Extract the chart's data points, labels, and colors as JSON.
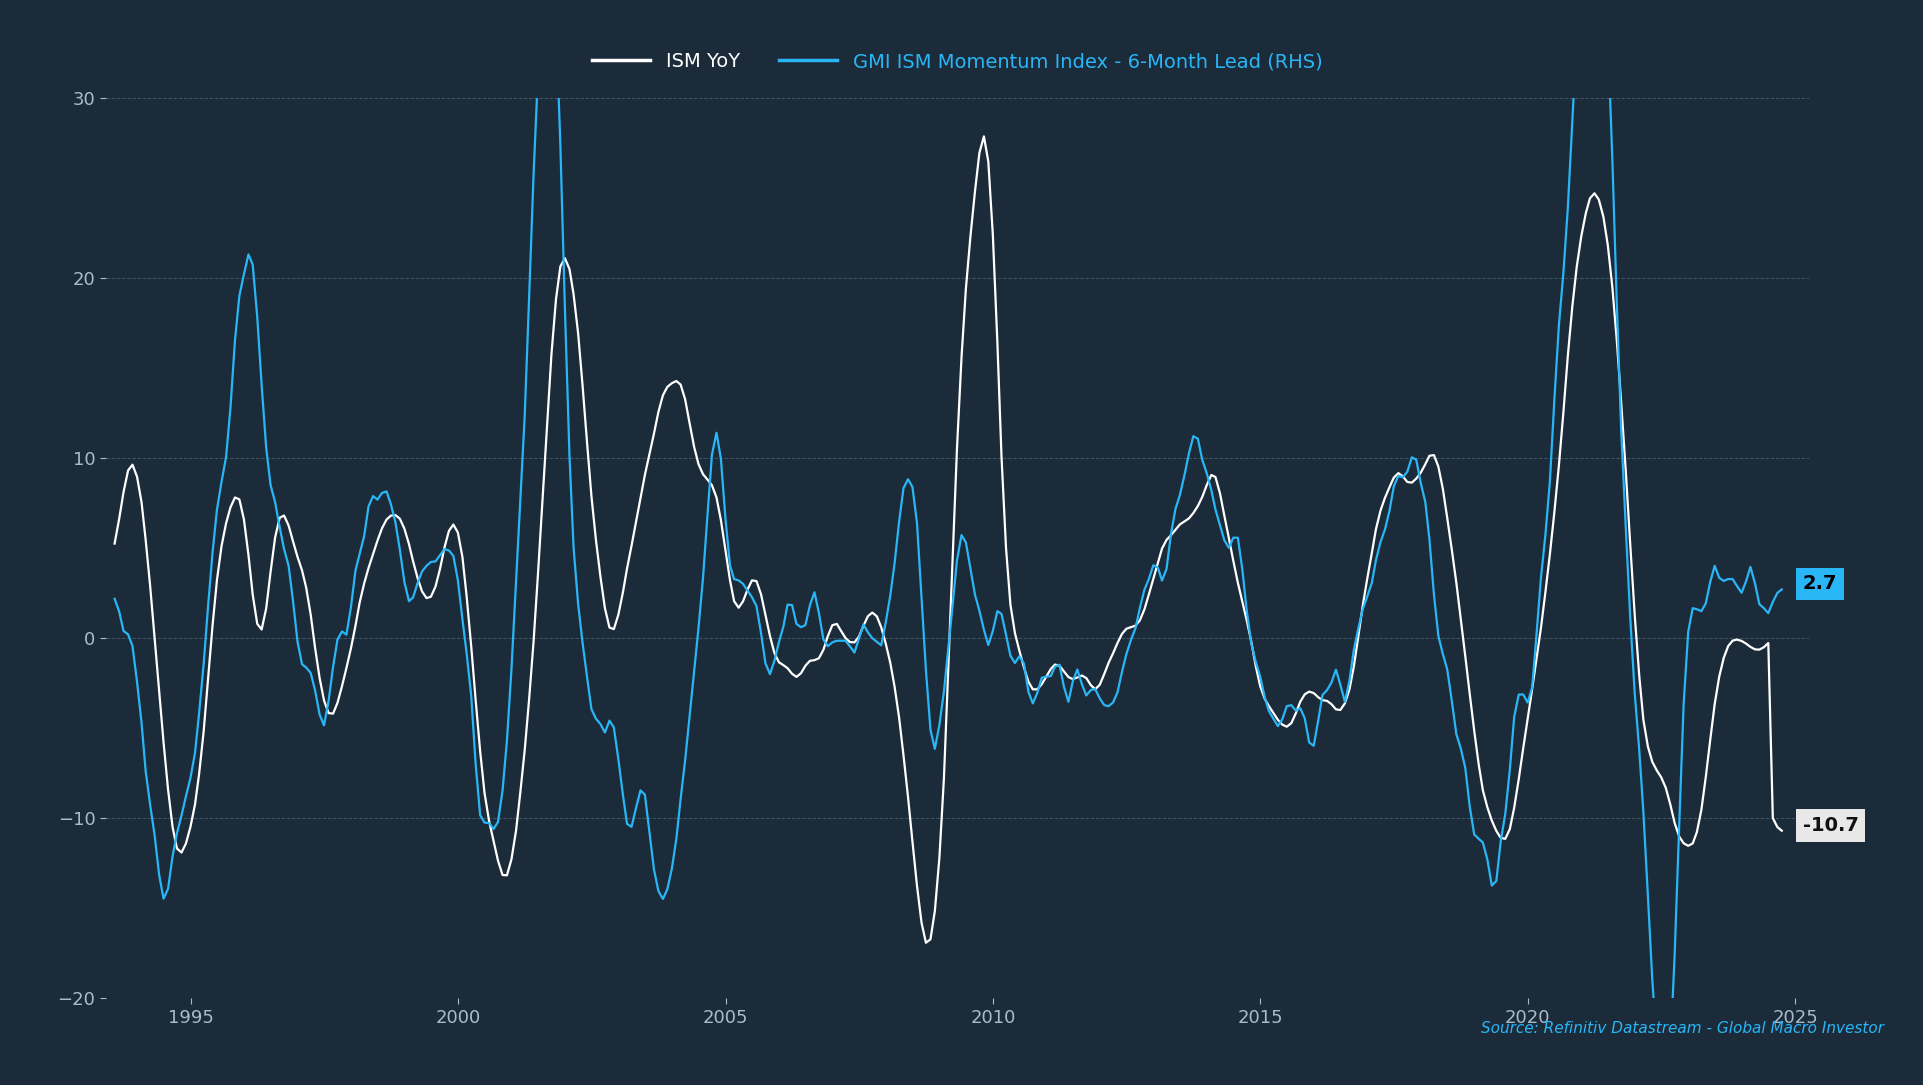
{
  "background_color": "#1c2b3a",
  "plot_bg_color": "#1c2b3a",
  "grid_color": "#4a6070",
  "legend_items": [
    "ISM YoY",
    "GMI ISM Momentum Index - 6-Month Lead (RHS)"
  ],
  "legend_colors": [
    "#ffffff",
    "#29b6f6"
  ],
  "source_text": "Source: Refinitiv Datastream - Global Macro Investor",
  "ylim": [
    -20,
    30
  ],
  "yticks": [
    -20,
    -10,
    0,
    10,
    20,
    30
  ],
  "annotation_2_7": "2.7",
  "annotation_neg10_7": "-10.7",
  "ann_bg_color": "#29b6f6",
  "ann_text_color": "#000000",
  "ann_white_bg": "#e8e8e8",
  "ism_yoy_color": "#ffffff",
  "gmi_color": "#29b6f6",
  "ism_yoy_linewidth": 1.6,
  "gmi_linewidth": 1.6,
  "tick_color": "#aabbcc",
  "tick_fontsize": 13
}
